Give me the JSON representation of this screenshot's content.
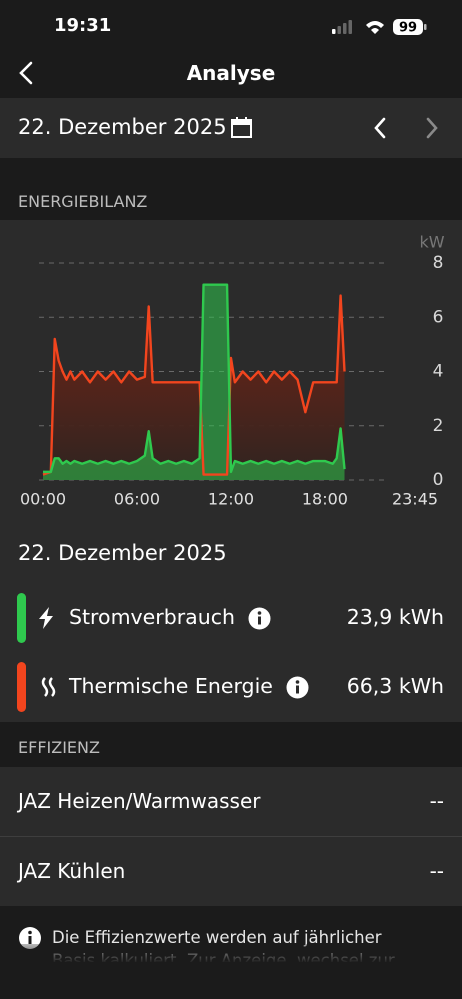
{
  "status_bar": {
    "time": "19:31",
    "battery": "99"
  },
  "nav": {
    "title": "Analyse"
  },
  "date_bar": {
    "date": "22. Dezember 2025"
  },
  "section_energy": {
    "label": "ENERGIEBILANZ"
  },
  "chart_data": {
    "type": "line",
    "y_unit": "kW",
    "x": [
      "00:00",
      "00:30",
      "00:45",
      "01:00",
      "01:15",
      "01:30",
      "01:45",
      "02:00",
      "02:30",
      "03:00",
      "03:30",
      "04:00",
      "04:30",
      "05:00",
      "05:30",
      "06:00",
      "06:30",
      "06:45",
      "07:00",
      "07:30",
      "08:00",
      "08:30",
      "09:00",
      "09:30",
      "10:00",
      "10:15",
      "11:45",
      "12:00",
      "12:15",
      "12:45",
      "13:15",
      "13:45",
      "14:15",
      "14:45",
      "15:15",
      "15:45",
      "16:15",
      "16:45",
      "17:15",
      "18:00",
      "18:30",
      "18:45",
      "19:00",
      "19:15"
    ],
    "series": [
      {
        "name": "Stromverbrauch",
        "color": "#2fc94e",
        "total": "23,9 kWh",
        "values": [
          0.3,
          0.3,
          0.8,
          0.8,
          0.6,
          0.7,
          0.6,
          0.7,
          0.6,
          0.7,
          0.6,
          0.7,
          0.6,
          0.7,
          0.6,
          0.7,
          0.9,
          1.8,
          0.8,
          0.6,
          0.7,
          0.6,
          0.7,
          0.6,
          0.8,
          7.2,
          7.2,
          0.3,
          0.7,
          0.6,
          0.7,
          0.6,
          0.7,
          0.6,
          0.7,
          0.6,
          0.7,
          0.6,
          0.7,
          0.7,
          0.6,
          0.8,
          1.9,
          0.4
        ]
      },
      {
        "name": "Thermische Energie",
        "color": "#f2451e",
        "total": "66,3 kWh",
        "values": [
          0.2,
          0.3,
          5.2,
          4.4,
          4.0,
          3.7,
          4.0,
          3.7,
          4.0,
          3.6,
          4.0,
          3.7,
          4.0,
          3.6,
          4.0,
          3.7,
          3.8,
          6.4,
          3.6,
          3.6,
          3.6,
          3.6,
          3.6,
          3.6,
          3.6,
          0.2,
          0.2,
          4.5,
          3.6,
          4.0,
          3.7,
          4.0,
          3.6,
          4.0,
          3.7,
          4.0,
          3.7,
          2.5,
          3.6,
          3.6,
          3.6,
          3.6,
          6.8,
          4.0
        ]
      }
    ],
    "xlim": [
      "00:00",
      "23:45"
    ],
    "xticks": [
      "00:00",
      "06:00",
      "12:00",
      "18:00",
      "23:45"
    ],
    "ylim": [
      0,
      8
    ],
    "yticks": [
      0,
      2,
      4,
      6,
      8
    ],
    "grid": true
  },
  "summary": {
    "date": "22. Dezember 2025"
  },
  "section_efficiency": {
    "label": "EFFIZIENZ",
    "rows": [
      {
        "label": "JAZ Heizen/Warmwasser",
        "value": "--"
      },
      {
        "label": "JAZ Kühlen",
        "value": "--"
      }
    ]
  },
  "note": {
    "text": "Die Effizienzwerte werden auf jährlicher Basis kalkuliert. Zur Anzeige, wechsel zur"
  }
}
